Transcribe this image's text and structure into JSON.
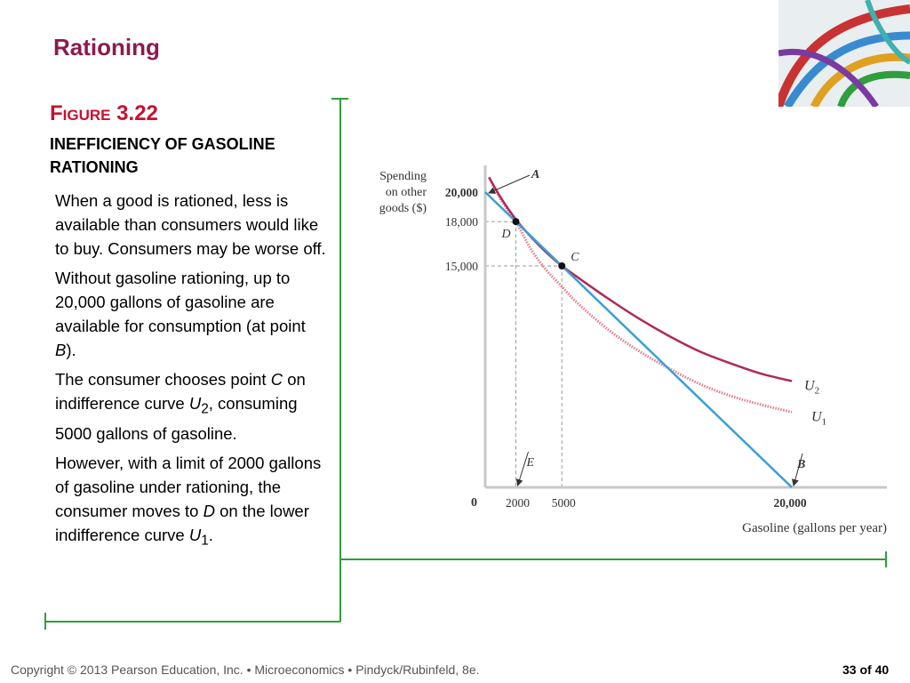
{
  "slide": {
    "title": "Rationing",
    "figure_prefix": "Figure",
    "figure_number": "3.22",
    "figure_title": "INEFFICIENCY OF GASOLINE RATIONING"
  },
  "body": {
    "p1": "When a good is rationed, less is available than consumers would like to buy. Consumers may be worse off.",
    "p2_a": "Without gasoline rationing, up to 20,000 gallons of gasoline are available for consumption (at point ",
    "p2_b": "B",
    "p2_c": ").",
    "p3_a": "The consumer chooses point ",
    "p3_b": "C",
    "p3_c": " on indifference curve ",
    "p3_d": "U",
    "p3_e": "2",
    "p3_f": ", consuming 5000 gallons of gasoline.",
    "p4_a": "However, with a limit of 2000 gallons of gasoline under rationing, the consumer moves to ",
    "p4_b": "D",
    "p4_c": " on the lower indifference curve ",
    "p4_d": "U",
    "p4_e": "1",
    "p4_f": "."
  },
  "footer": {
    "copyright": "Copyright © 2013  Pearson Education, Inc. •  Microeconomics  •  Pindyck/Rubinfeld, 8e.",
    "page": "33 of 40"
  },
  "colors": {
    "title": "#8b1a4f",
    "figure_label": "#c8102e",
    "frame": "#2e9e3e",
    "budget_line": "#3a9fd8",
    "u2": "#b0285a",
    "u1": "#e07a8a"
  },
  "chart_data": {
    "type": "line",
    "ylabel": "Spending on other goods ($)",
    "xlabel": "Gasoline (gallons per year)",
    "xlim": [
      0,
      22000
    ],
    "ylim": [
      0,
      21200
    ],
    "origin_label": "0",
    "x_ticks": [
      {
        "value": 2000,
        "label": "2000"
      },
      {
        "value": 5000,
        "label": "5000"
      },
      {
        "value": 20000,
        "label": "20,000"
      }
    ],
    "y_ticks": [
      {
        "value": 15000,
        "label": "15,000"
      },
      {
        "value": 18000,
        "label": "18,000"
      },
      {
        "value": 20000,
        "label": "20,000"
      }
    ],
    "budget_line": {
      "x": [
        0,
        20000
      ],
      "y": [
        20000,
        0
      ]
    },
    "series": [
      {
        "name": "U2",
        "x": [
          250,
          1000,
          2000,
          3000,
          4000,
          5000,
          6000,
          8000,
          10000,
          12000,
          14000,
          16000,
          18000,
          20000
        ],
        "y": [
          21000,
          19650,
          18150,
          16950,
          15900,
          15000,
          14250,
          12800,
          11450,
          10250,
          9200,
          8400,
          7700,
          7200
        ]
      },
      {
        "name": "U1",
        "x": [
          250,
          1000,
          2000,
          3000,
          4000,
          5000,
          6000,
          8000,
          10000,
          12000,
          14000,
          16000,
          18000,
          20000
        ],
        "y": [
          21000,
          19500,
          18000,
          16100,
          14700,
          13600,
          12500,
          10700,
          9250,
          8050,
          7000,
          6200,
          5600,
          5100
        ]
      }
    ],
    "points": [
      {
        "label": "A",
        "x": 0,
        "y": 20000,
        "marker": false
      },
      {
        "label": "D",
        "x": 2000,
        "y": 18000,
        "marker": true
      },
      {
        "label": "C",
        "x": 5000,
        "y": 15000,
        "marker": true
      },
      {
        "label": "E",
        "x": 2000,
        "y": 0,
        "marker": false
      },
      {
        "label": "B",
        "x": 20000,
        "y": 0,
        "marker": false
      }
    ],
    "curve_labels": [
      {
        "label": "U",
        "sub": "2"
      },
      {
        "label": "U",
        "sub": "1"
      }
    ]
  }
}
